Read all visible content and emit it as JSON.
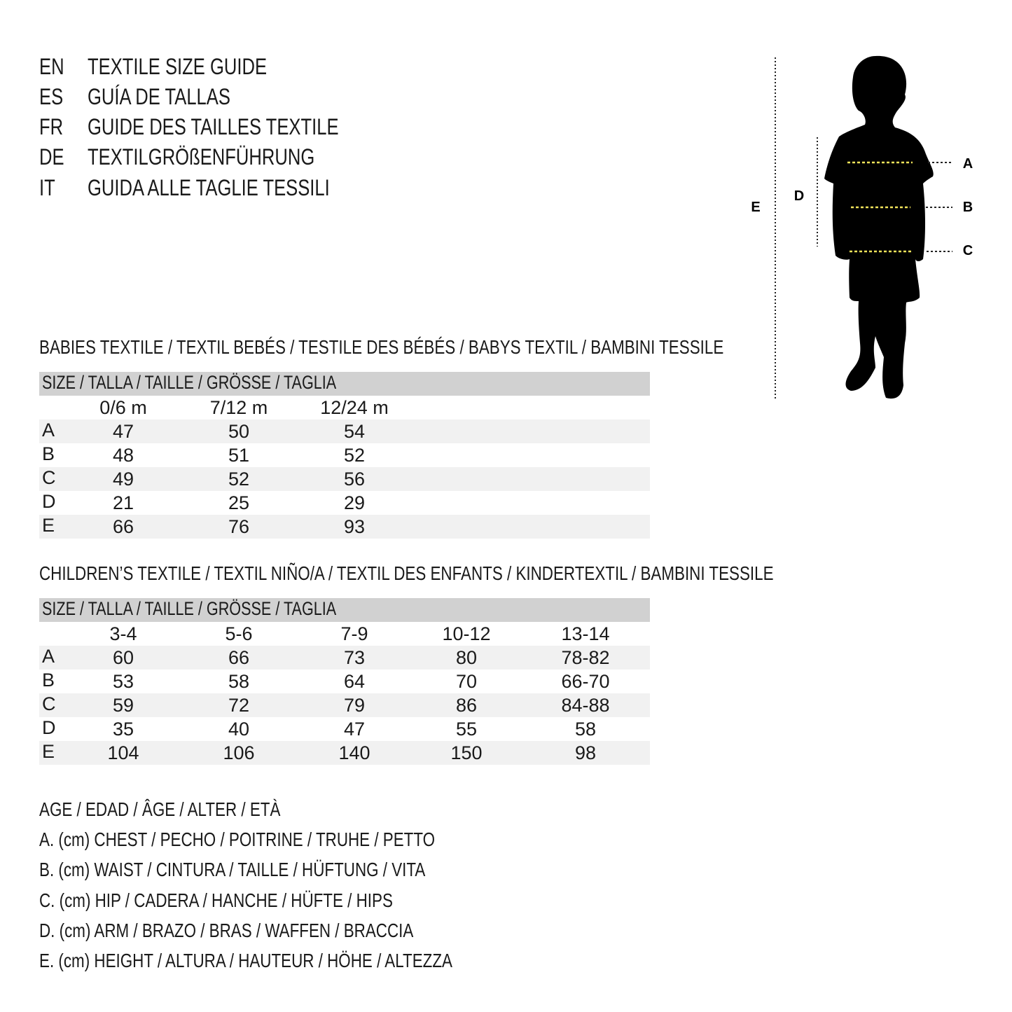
{
  "titles": [
    {
      "code": "EN",
      "text": "TEXTILE SIZE GUIDE"
    },
    {
      "code": "ES",
      "text": "GUÍA DE TALLAS"
    },
    {
      "code": "FR",
      "text": "GUIDE DES TAILLES TEXTILE"
    },
    {
      "code": "DE",
      "text": "TEXTILGRÖßENFÜHRUNG"
    },
    {
      "code": "IT",
      "text": "GUIDA ALLE TAGLIE TESSILI"
    }
  ],
  "diagram": {
    "labels": {
      "A": "A",
      "B": "B",
      "C": "C",
      "D": "D",
      "E": "E"
    },
    "measure_line_color": "#f2e35a"
  },
  "babies": {
    "title": "BABIES TEXTILE / TEXTIL BEBÉS / TESTILE DES BÉBÉS / BABYS TEXTIL / BAMBINI TESSILE",
    "header": "SIZE / TALLA / TAILLE / GRÖSSE / TAGLIA",
    "columns": [
      "0/6 m",
      "7/12 m",
      "12/24 m"
    ],
    "rows": [
      {
        "label": "A",
        "values": [
          "47",
          "50",
          "54"
        ]
      },
      {
        "label": "B",
        "values": [
          "48",
          "51",
          "52"
        ]
      },
      {
        "label": "C",
        "values": [
          "49",
          "52",
          "56"
        ]
      },
      {
        "label": "D",
        "values": [
          "21",
          "25",
          "29"
        ]
      },
      {
        "label": "E",
        "values": [
          "66",
          "76",
          "93"
        ]
      }
    ]
  },
  "children": {
    "title": "CHILDREN’S TEXTILE / TEXTIL NIÑO/A / TEXTIL DES ENFANTS / KINDERTEXTIL / BAMBINI TESSILE",
    "header": "SIZE / TALLA / TAILLE / GRÖSSE / TAGLIA",
    "columns": [
      "3-4",
      "5-6",
      "7-9",
      "10-12",
      "13-14"
    ],
    "rows": [
      {
        "label": "A",
        "values": [
          "60",
          "66",
          "73",
          "80",
          "78-82"
        ]
      },
      {
        "label": "B",
        "values": [
          "53",
          "58",
          "64",
          "70",
          "66-70"
        ]
      },
      {
        "label": "C",
        "values": [
          "59",
          "72",
          "79",
          "86",
          "84-88"
        ]
      },
      {
        "label": "D",
        "values": [
          "35",
          "40",
          "47",
          "55",
          "58"
        ]
      },
      {
        "label": "E",
        "values": [
          "104",
          "106",
          "140",
          "150",
          "98"
        ]
      }
    ]
  },
  "legend": [
    "AGE / EDAD / ÂGE / ALTER / ETÀ",
    "A. (cm) CHEST / PECHO / POITRINE / TRUHE / PETTO",
    "B. (cm) WAIST / CINTURA / TAILLE / HÜFTUNG / VITA",
    "C. (cm) HIP / CADERA / HANCHE / HÜFTE / HIPS",
    "D. (cm) ARM / BRAZO / BRAS / WAFFEN / BRACCIA",
    "E. (cm) HEIGHT / ALTURA / HAUTEUR / HÖHE / ALTEZZA"
  ]
}
